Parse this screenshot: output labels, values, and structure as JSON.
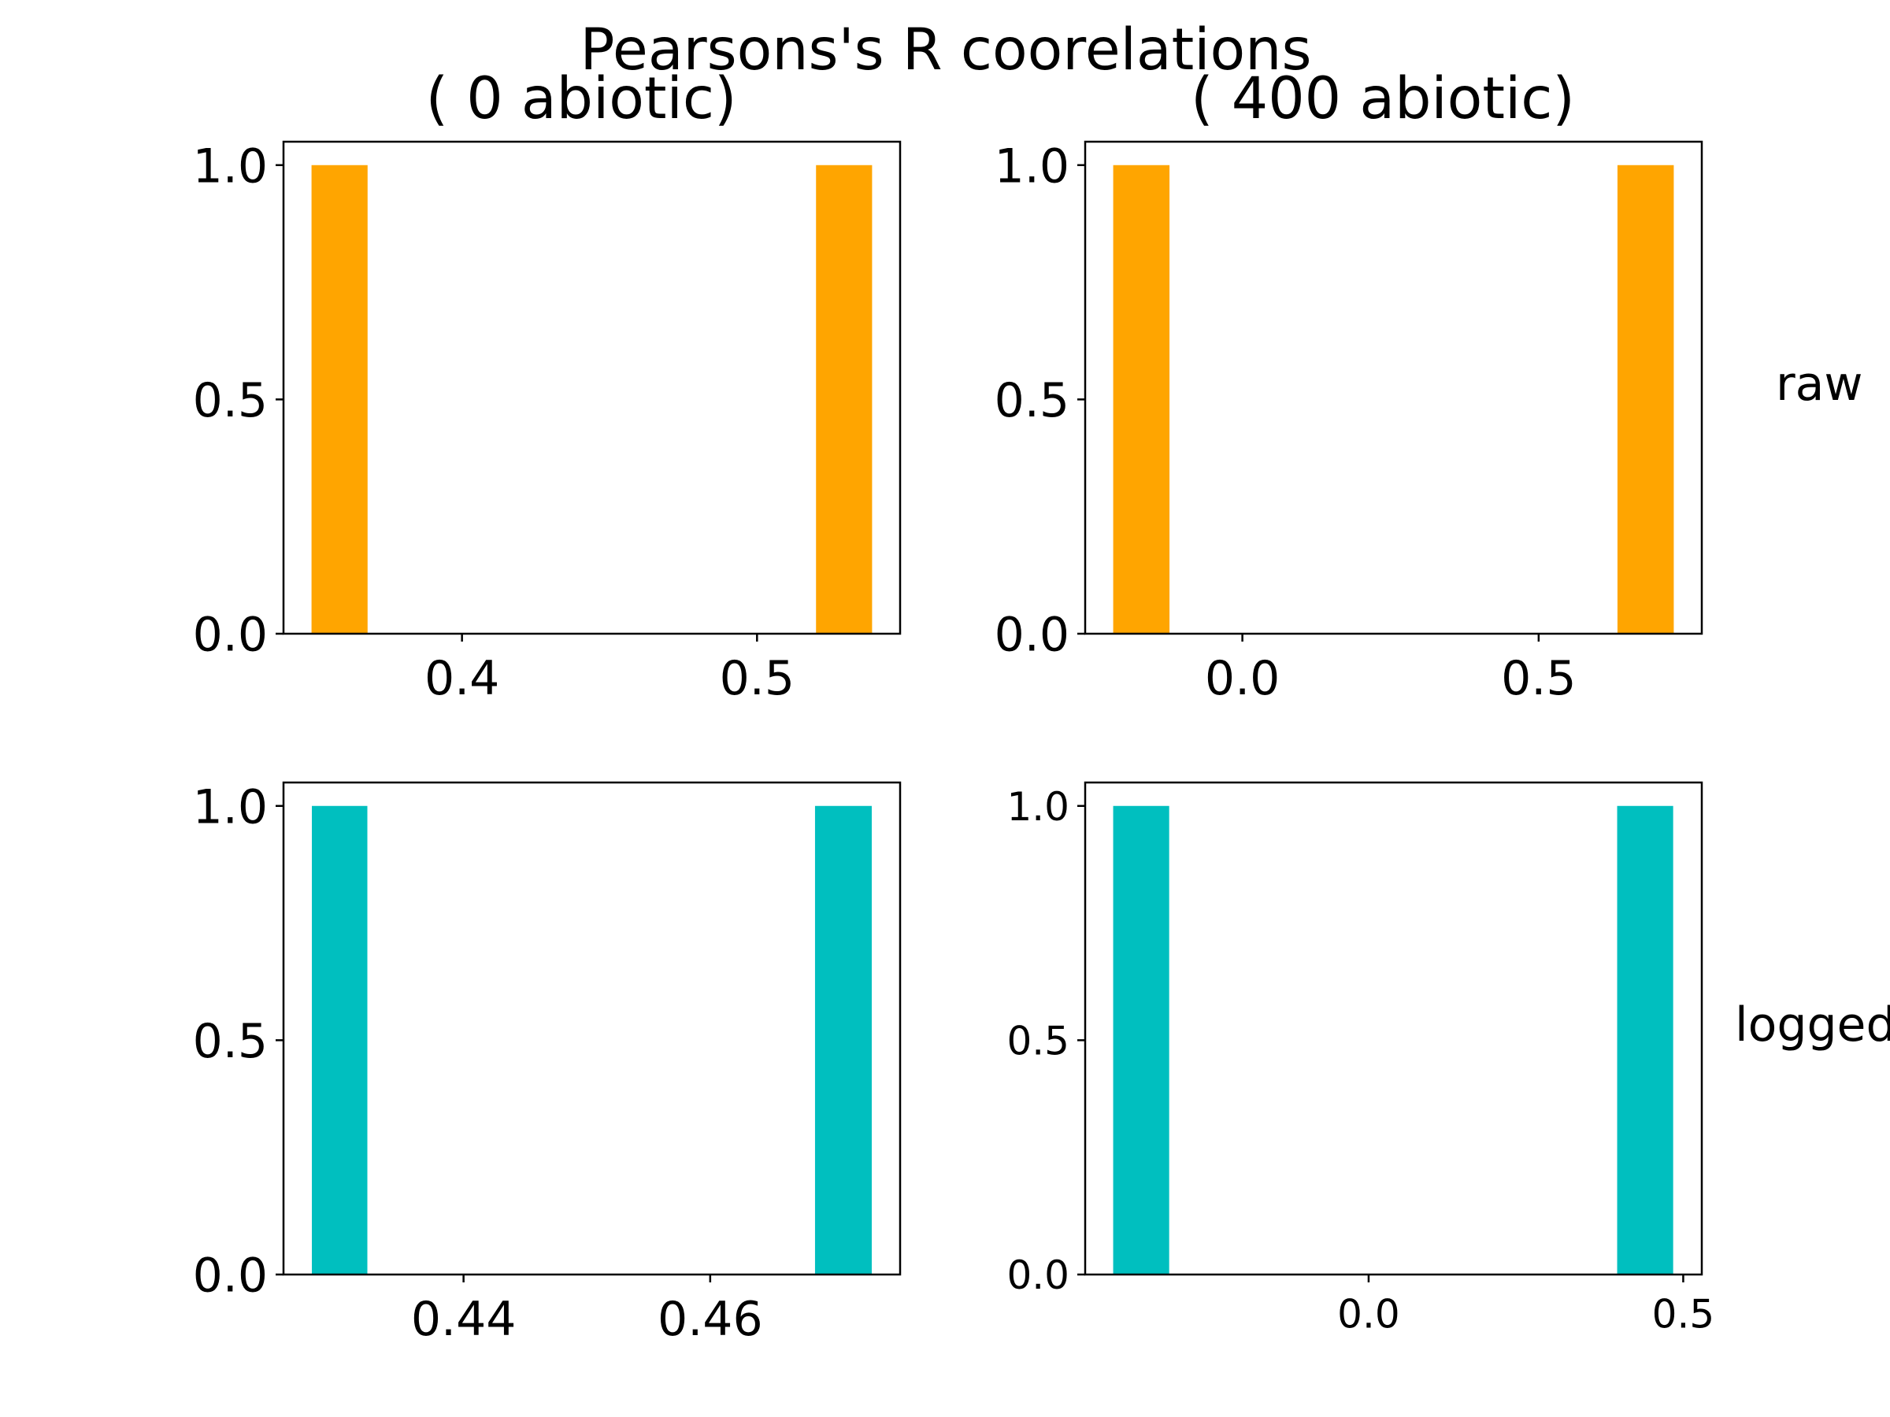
{
  "suptitle": "Pearsons's R coorelations",
  "chart_data": [
    {
      "type": "bar",
      "title": "( 0 abiotic)",
      "row_label": "",
      "color": "#FFA500",
      "xlim": [
        0.3395,
        0.5485
      ],
      "ylim": [
        0,
        1.05
      ],
      "xticks": [
        {
          "value": 0.4,
          "label": "0.4"
        },
        {
          "value": 0.5,
          "label": "0.5"
        }
      ],
      "yticks": [
        {
          "value": 0,
          "label": "0.0"
        },
        {
          "value": 0.5,
          "label": "0.5"
        },
        {
          "value": 1,
          "label": "1.0"
        }
      ],
      "bars": [
        {
          "x0": 0.349,
          "x1": 0.368,
          "value": 1
        },
        {
          "x0": 0.52,
          "x1": 0.539,
          "value": 1
        }
      ]
    },
    {
      "type": "bar",
      "title": "( 400 abiotic)",
      "row_label": "raw",
      "color": "#FFA500",
      "xlim": [
        -0.2653,
        0.7753
      ],
      "ylim": [
        0,
        1.05
      ],
      "xticks": [
        {
          "value": 0,
          "label": "0.0"
        },
        {
          "value": 0.5,
          "label": "0.5"
        }
      ],
      "yticks": [
        {
          "value": 0,
          "label": "0.0"
        },
        {
          "value": 0.5,
          "label": "0.5"
        },
        {
          "value": 1,
          "label": "1.0"
        }
      ],
      "bars": [
        {
          "x0": -0.218,
          "x1": -0.123,
          "value": 1
        },
        {
          "x0": 0.633,
          "x1": 0.728,
          "value": 1
        }
      ]
    },
    {
      "type": "bar",
      "title": "",
      "row_label": "",
      "color": "#00BFBF",
      "xlim": [
        0.4254,
        0.4754
      ],
      "ylim": [
        0,
        1.05
      ],
      "xticks": [
        {
          "value": 0.44,
          "label": "0.44"
        },
        {
          "value": 0.46,
          "label": "0.46"
        }
      ],
      "yticks": [
        {
          "value": 0,
          "label": "0.0"
        },
        {
          "value": 0.5,
          "label": "0.5"
        },
        {
          "value": 1,
          "label": "1.0"
        }
      ],
      "bars": [
        {
          "x0": 0.4277,
          "x1": 0.4322,
          "value": 1
        },
        {
          "x0": 0.4685,
          "x1": 0.4731,
          "value": 1
        }
      ]
    },
    {
      "type": "bar",
      "title": "",
      "row_label": "logged",
      "color": "#00BFBF",
      "xlim": [
        -0.4505,
        0.5295
      ],
      "ylim": [
        0,
        1.05
      ],
      "xticks": [
        {
          "value": 0,
          "label": "0.0"
        },
        {
          "value": 0.5,
          "label": "0.5"
        }
      ],
      "yticks": [
        {
          "value": 0,
          "label": "0.0"
        },
        {
          "value": 0.5,
          "label": "0.5"
        },
        {
          "value": 1,
          "label": "1.0"
        }
      ],
      "bars": [
        {
          "x0": -0.406,
          "x1": -0.317,
          "value": 1
        },
        {
          "x0": 0.395,
          "x1": 0.484,
          "value": 1
        }
      ]
    }
  ]
}
